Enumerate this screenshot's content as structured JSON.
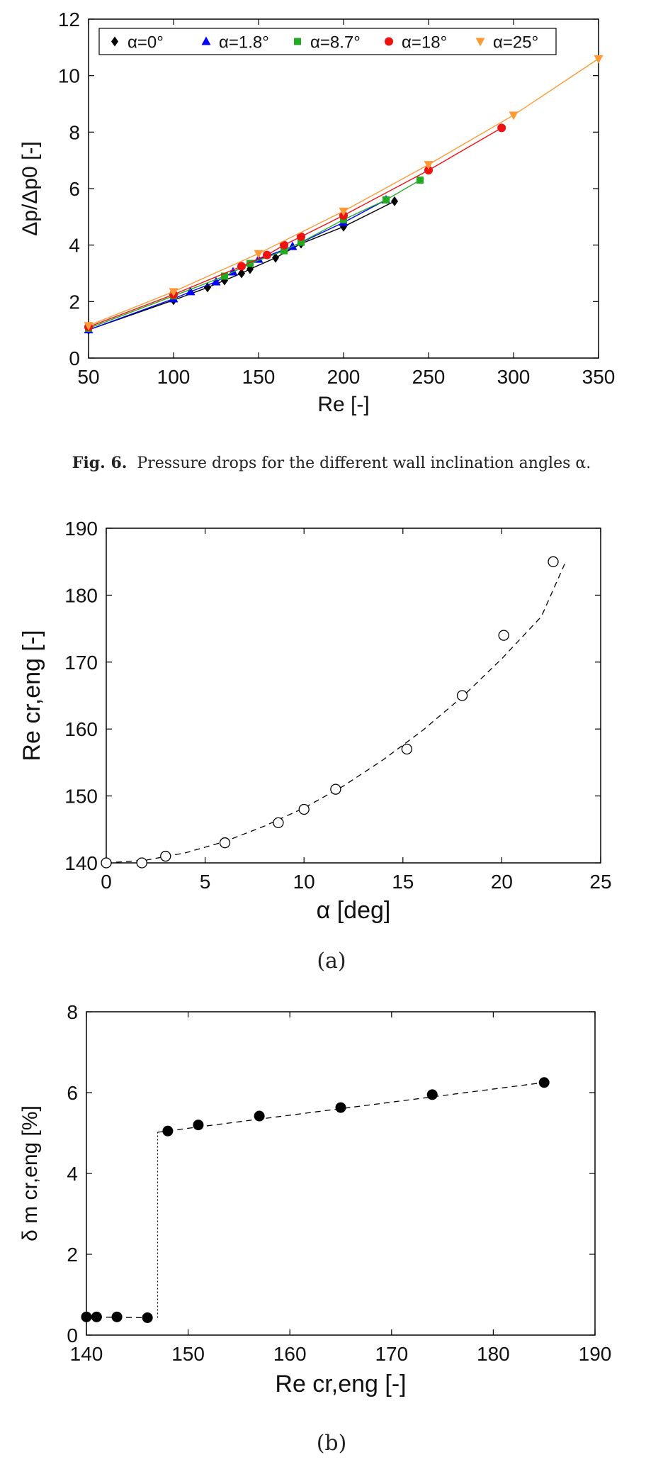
{
  "figure6": {
    "caption_label": "Fig. 6.",
    "caption_text": "Pressure drops for the different wall inclination angles α."
  },
  "figure7": {
    "sub_a": "(a)",
    "sub_b": "(b)"
  },
  "chart_data": [
    {
      "type": "line",
      "title": "",
      "xlabel": "Re [-]",
      "ylabel": "Δp/Δp0 [-]",
      "xlim": [
        50,
        350
      ],
      "ylim": [
        0,
        12
      ],
      "xticks": [
        50,
        100,
        150,
        200,
        250,
        300,
        350
      ],
      "yticks": [
        0,
        2,
        4,
        6,
        8,
        10,
        12
      ],
      "grid": false,
      "legend_position": "top",
      "series": [
        {
          "name": "α=0°",
          "color": "#000000",
          "marker": "diamond",
          "x": [
            50,
            100,
            120,
            130,
            140,
            145,
            160,
            175,
            200,
            230
          ],
          "y": [
            1.0,
            2.05,
            2.5,
            2.75,
            3.0,
            3.15,
            3.55,
            4.05,
            4.65,
            5.55
          ]
        },
        {
          "name": "α=1.8°",
          "color": "#0000ff",
          "marker": "triangle-up",
          "x": [
            50,
            100,
            110,
            125,
            135,
            150,
            170,
            200,
            225
          ],
          "y": [
            1.0,
            2.1,
            2.35,
            2.7,
            3.05,
            3.5,
            3.95,
            4.8,
            5.6
          ]
        },
        {
          "name": "α=8.7°",
          "color": "#22aa22",
          "marker": "square",
          "x": [
            50,
            100,
            130,
            145,
            165,
            175,
            200,
            225,
            245
          ],
          "y": [
            1.05,
            2.2,
            2.9,
            3.35,
            3.8,
            4.1,
            4.9,
            5.6,
            6.3
          ]
        },
        {
          "name": "α=18°",
          "color": "#ee1111",
          "marker": "circle",
          "x": [
            50,
            100,
            140,
            155,
            165,
            175,
            200,
            250,
            293
          ],
          "y": [
            1.1,
            2.25,
            3.25,
            3.65,
            4.0,
            4.3,
            5.05,
            6.65,
            8.15
          ]
        },
        {
          "name": "α=25°",
          "color": "#ff9933",
          "marker": "triangle-down",
          "x": [
            50,
            100,
            150,
            200,
            250,
            300,
            350
          ],
          "y": [
            1.15,
            2.35,
            3.7,
            5.2,
            6.85,
            8.6,
            10.6
          ]
        }
      ]
    },
    {
      "type": "scatter",
      "title": "",
      "xlabel": "α [deg]",
      "ylabel": "Re cr,eng [-]",
      "xlim": [
        0,
        25
      ],
      "ylim": [
        140,
        190
      ],
      "xticks": [
        0,
        5,
        10,
        15,
        20,
        25
      ],
      "yticks": [
        140,
        150,
        160,
        170,
        180,
        190
      ],
      "grid": false,
      "series": [
        {
          "name": "",
          "marker": "open-circle",
          "x": [
            0,
            1.8,
            3.0,
            6.0,
            8.7,
            10.0,
            11.6,
            15.2,
            18.0,
            20.1,
            22.6
          ],
          "y": [
            140,
            140,
            141,
            143,
            146,
            148,
            151,
            157,
            165,
            174,
            185
          ]
        }
      ],
      "fit": {
        "style": "dashed",
        "x": [
          0,
          2,
          4,
          6,
          8,
          10,
          12,
          14,
          16,
          18,
          20,
          22,
          23.2
        ],
        "y": [
          140,
          140.4,
          141.5,
          143.2,
          145.5,
          148.2,
          151.5,
          155.4,
          159.8,
          164.8,
          170.5,
          176.8,
          184.8
        ]
      }
    },
    {
      "type": "scatter",
      "title": "",
      "xlabel": "Re cr,eng [-]",
      "ylabel": "δ m cr,eng [%]",
      "xlim": [
        140,
        190
      ],
      "ylim": [
        0,
        8
      ],
      "xticks": [
        140,
        150,
        160,
        170,
        180,
        190
      ],
      "yticks": [
        0,
        2,
        4,
        6,
        8
      ],
      "grid": false,
      "series": [
        {
          "name": "",
          "marker": "filled-circle",
          "x": [
            140,
            141,
            143,
            146,
            148,
            151,
            157,
            165,
            174,
            185
          ],
          "y": [
            0.45,
            0.45,
            0.45,
            0.43,
            5.05,
            5.2,
            5.42,
            5.63,
            5.95,
            6.25
          ]
        }
      ],
      "fit_low": {
        "style": "dashed",
        "x": [
          140,
          146
        ],
        "y": [
          0.45,
          0.43
        ]
      },
      "fit_high": {
        "style": "dashed",
        "x": [
          147,
          185
        ],
        "y": [
          5.02,
          6.25
        ]
      },
      "jump": {
        "style": "dotted",
        "x": 147,
        "y": [
          0.43,
          5.02
        ]
      }
    }
  ]
}
